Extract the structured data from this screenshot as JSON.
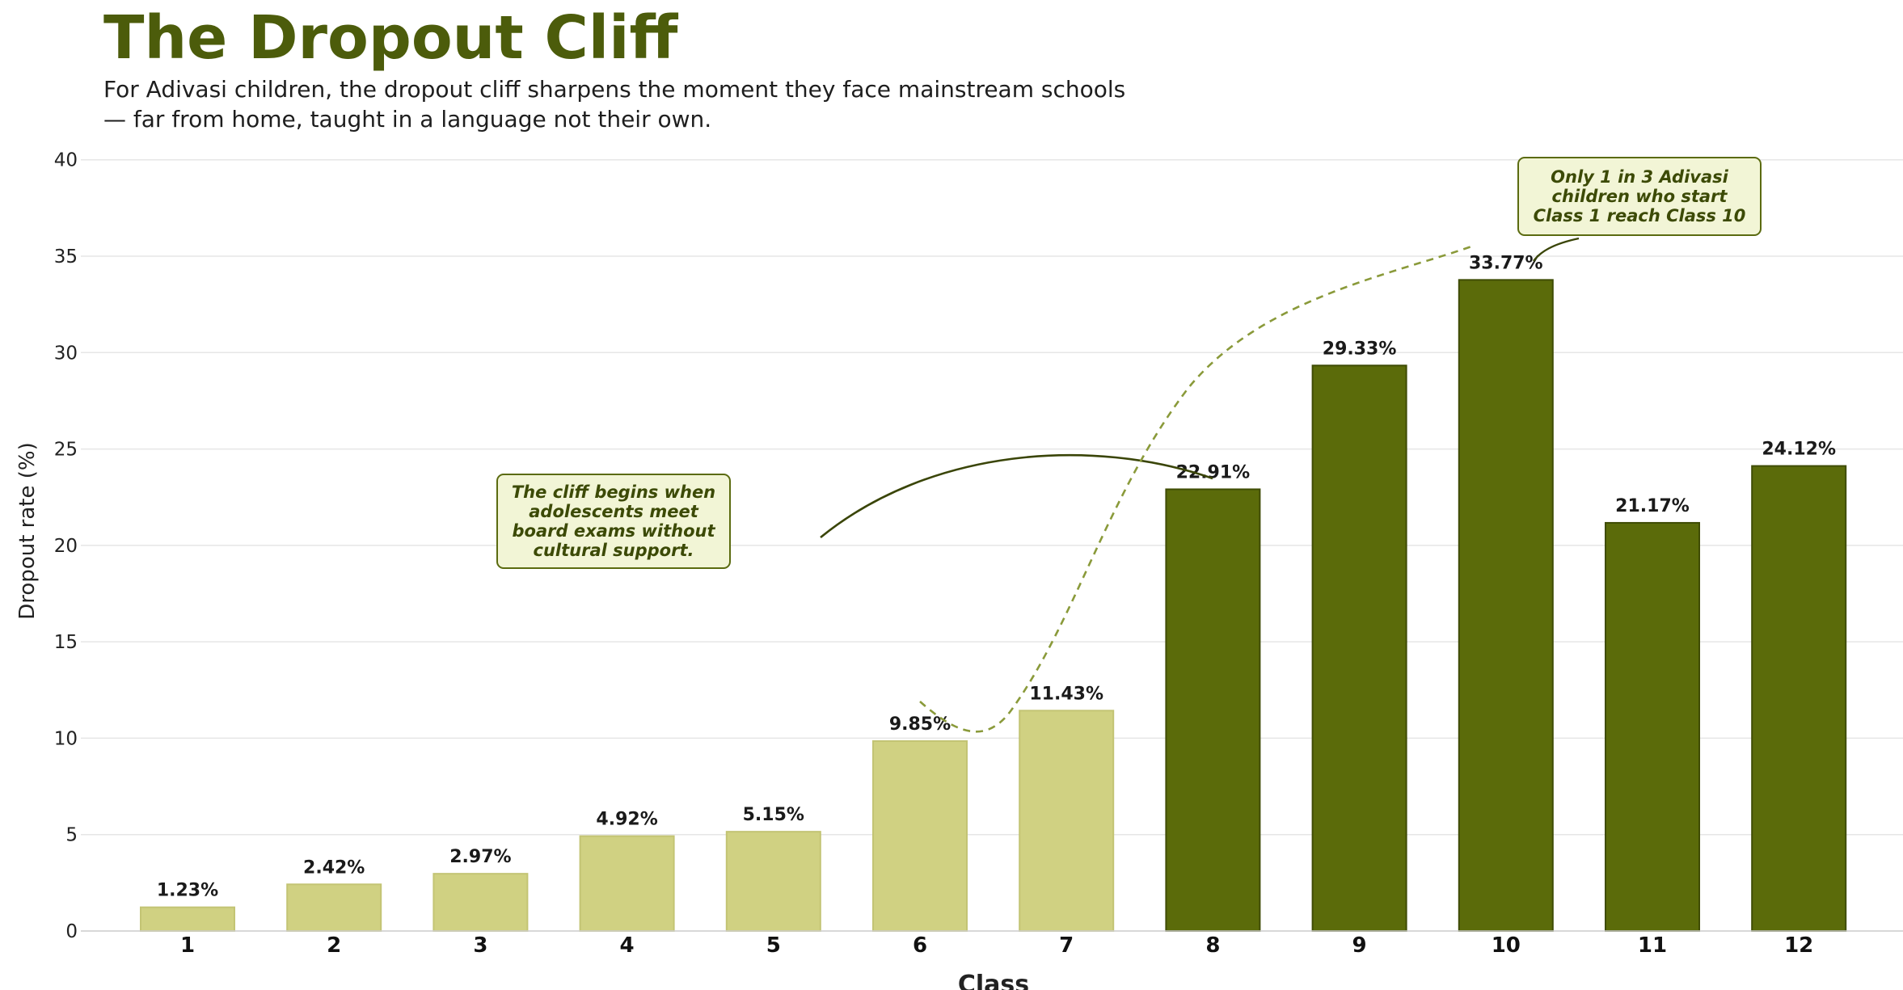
{
  "title": "The Dropout Cliff",
  "subtitle_line1": "For Adivasi children, the dropout cliff sharpens the moment they face mainstream schools",
  "subtitle_line2": "— far from home, taught in a language not their own.",
  "annotations": {
    "cliff_note": "The cliff begins when adolescents meet board exams without cultural support.",
    "reach_note": "Only 1 in 3 Adivasi children who start Class 1 reach Class 10"
  },
  "colors": {
    "title": "#4c5c0b",
    "bar_light": "#d0d182",
    "bar_dark": "#5b6b0a",
    "bar_dark_edge": "#3f4c05",
    "note_bg": "#f2f5d6",
    "grid": "#e6e6e6"
  },
  "chart_data": {
    "type": "bar",
    "title": "The Dropout Cliff",
    "xlabel": "Class",
    "ylabel": "Dropout rate (%)",
    "categories": [
      "1",
      "2",
      "3",
      "4",
      "5",
      "6",
      "7",
      "8",
      "9",
      "10",
      "11",
      "12"
    ],
    "values": [
      1.23,
      2.42,
      2.97,
      4.92,
      5.15,
      9.85,
      11.43,
      22.91,
      29.33,
      33.77,
      21.17,
      24.12
    ],
    "data_labels": [
      "1.23%",
      "2.42%",
      "2.97%",
      "4.92%",
      "5.15%",
      "9.85%",
      "11.43%",
      "22.91%",
      "29.33%",
      "33.77%",
      "21.17%",
      "24.12%"
    ],
    "highlight_from_category": "8",
    "ylim": [
      0,
      42
    ],
    "yticks": [
      0,
      5,
      10,
      15,
      20,
      25,
      30,
      35,
      40
    ],
    "grid": true,
    "legend": "none"
  }
}
